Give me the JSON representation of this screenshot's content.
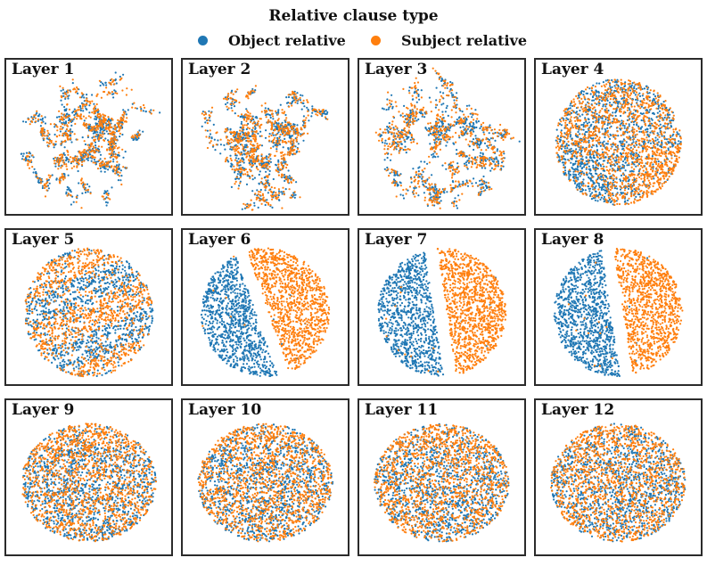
{
  "legend": {
    "title": "Relative clause type",
    "entries": [
      {
        "label": "Object relative",
        "color": "#1f77b4"
      },
      {
        "label": "Subject relative",
        "color": "#ff7f0e"
      }
    ]
  },
  "chart_data": {
    "type": "scatter",
    "title": "Relative clause type",
    "xlabel": "",
    "ylabel": "",
    "series": [
      {
        "name": "Object relative",
        "color": "#1f77b4"
      },
      {
        "name": "Subject relative",
        "color": "#ff7f0e"
      }
    ],
    "panels": [
      {
        "label": "Layer 1",
        "layout": "fragmented",
        "separation": "mixed"
      },
      {
        "label": "Layer 2",
        "layout": "fragmented",
        "separation": "mixed"
      },
      {
        "label": "Layer 3",
        "layout": "fragmented",
        "separation": "mixed"
      },
      {
        "label": "Layer 4",
        "layout": "dense",
        "separation": "partial"
      },
      {
        "label": "Layer 5",
        "layout": "banded",
        "separation": "partial"
      },
      {
        "label": "Layer 6",
        "layout": "two-clusters-diagonal",
        "separation": "separated"
      },
      {
        "label": "Layer 7",
        "layout": "two-clusters-vertical",
        "separation": "separated"
      },
      {
        "label": "Layer 8",
        "layout": "two-clusters-vertical",
        "separation": "separated"
      },
      {
        "label": "Layer 9",
        "layout": "disk",
        "separation": "mixed"
      },
      {
        "label": "Layer 10",
        "layout": "disk",
        "separation": "mixed"
      },
      {
        "label": "Layer 11",
        "layout": "disk",
        "separation": "mixed"
      },
      {
        "label": "Layer 12",
        "layout": "disk",
        "separation": "mixed"
      }
    ]
  }
}
